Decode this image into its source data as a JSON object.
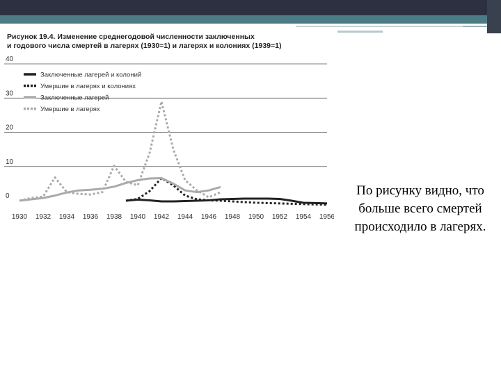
{
  "slide": {
    "caption": "По рисунку видно, что больше всего смертей происходило в лагерях.",
    "colors": {
      "topbar": "#2b3140",
      "accent": "#4b7c86"
    }
  },
  "chart_data": {
    "type": "line",
    "title": "Рисунок 19.4. Изменение среднегодовой численности заключенных и годового числа смертей в лагерях (1930=1) и лагерях и колониях (1939=1)",
    "title_lines": [
      "Рисунок 19.4. Изменение среднегодовой численности заключенных",
      "и годового числа смертей в лагерях (1930=1) и лагерях и колониях (1939=1)"
    ],
    "xlabel": "",
    "ylabel": "",
    "xlim": [
      1930,
      1956
    ],
    "ylim": [
      0,
      40
    ],
    "x_ticks": [
      "1930",
      "1932",
      "1934",
      "1936",
      "1938",
      "1940",
      "1942",
      "1944",
      "1946",
      "1948",
      "1950",
      "1952",
      "1954",
      "1956"
    ],
    "y_ticks": [
      "0",
      "10",
      "20",
      "30",
      "40"
    ],
    "grid": "horizontal",
    "legend_position": "top-left",
    "series": [
      {
        "name": "Заключенные лагерей и колоний",
        "style": "solid",
        "color": "#222222",
        "x": [
          1939,
          1940,
          1941,
          1942,
          1943,
          1944,
          1945,
          1946,
          1947,
          1948,
          1949,
          1950,
          1951,
          1952,
          1953,
          1954,
          1955,
          1956
        ],
        "y": [
          0,
          0.3,
          0.1,
          -0.2,
          -0.2,
          -0.1,
          0,
          0.1,
          0.4,
          0.5,
          0.6,
          0.6,
          0.6,
          0.5,
          0,
          -0.6,
          -0.7,
          -0.8
        ]
      },
      {
        "name": "Умершие в лагерях и колониях",
        "style": "dotted",
        "color": "#222222",
        "x": [
          1939,
          1940,
          1941,
          1942,
          1943,
          1944,
          1945,
          1946,
          1947,
          1948,
          1949,
          1950,
          1951,
          1952,
          1953,
          1954,
          1955,
          1956
        ],
        "y": [
          0,
          0.5,
          2.8,
          6.6,
          4.5,
          1.5,
          0.4,
          0.1,
          0,
          -0.2,
          -0.4,
          -0.6,
          -0.7,
          -0.8,
          -0.9,
          -1,
          -1.1,
          -1.2
        ]
      },
      {
        "name": "Заключенные лагерей",
        "style": "solid",
        "color": "#aaaaaa",
        "x": [
          1930,
          1931,
          1932,
          1933,
          1934,
          1935,
          1936,
          1937,
          1938,
          1939,
          1940,
          1941,
          1942,
          1943,
          1944,
          1945,
          1946,
          1947
        ],
        "y": [
          0,
          0.4,
          0.8,
          1.5,
          2.4,
          3,
          3.2,
          3.5,
          4.1,
          5.2,
          6,
          6.5,
          6.6,
          5,
          3,
          2.5,
          3,
          4
        ]
      },
      {
        "name": "Умершие в лагерях",
        "style": "dotted",
        "color": "#aaaaaa",
        "x": [
          1930,
          1931,
          1932,
          1933,
          1934,
          1935,
          1936,
          1937,
          1938,
          1939,
          1940,
          1941,
          1942,
          1943,
          1944,
          1945,
          1946,
          1947
        ],
        "y": [
          0,
          0.8,
          1.2,
          6.8,
          2.5,
          2,
          1.8,
          2.5,
          10.2,
          5.5,
          4.5,
          14,
          29,
          15,
          6,
          3,
          1,
          2.5
        ]
      }
    ]
  }
}
